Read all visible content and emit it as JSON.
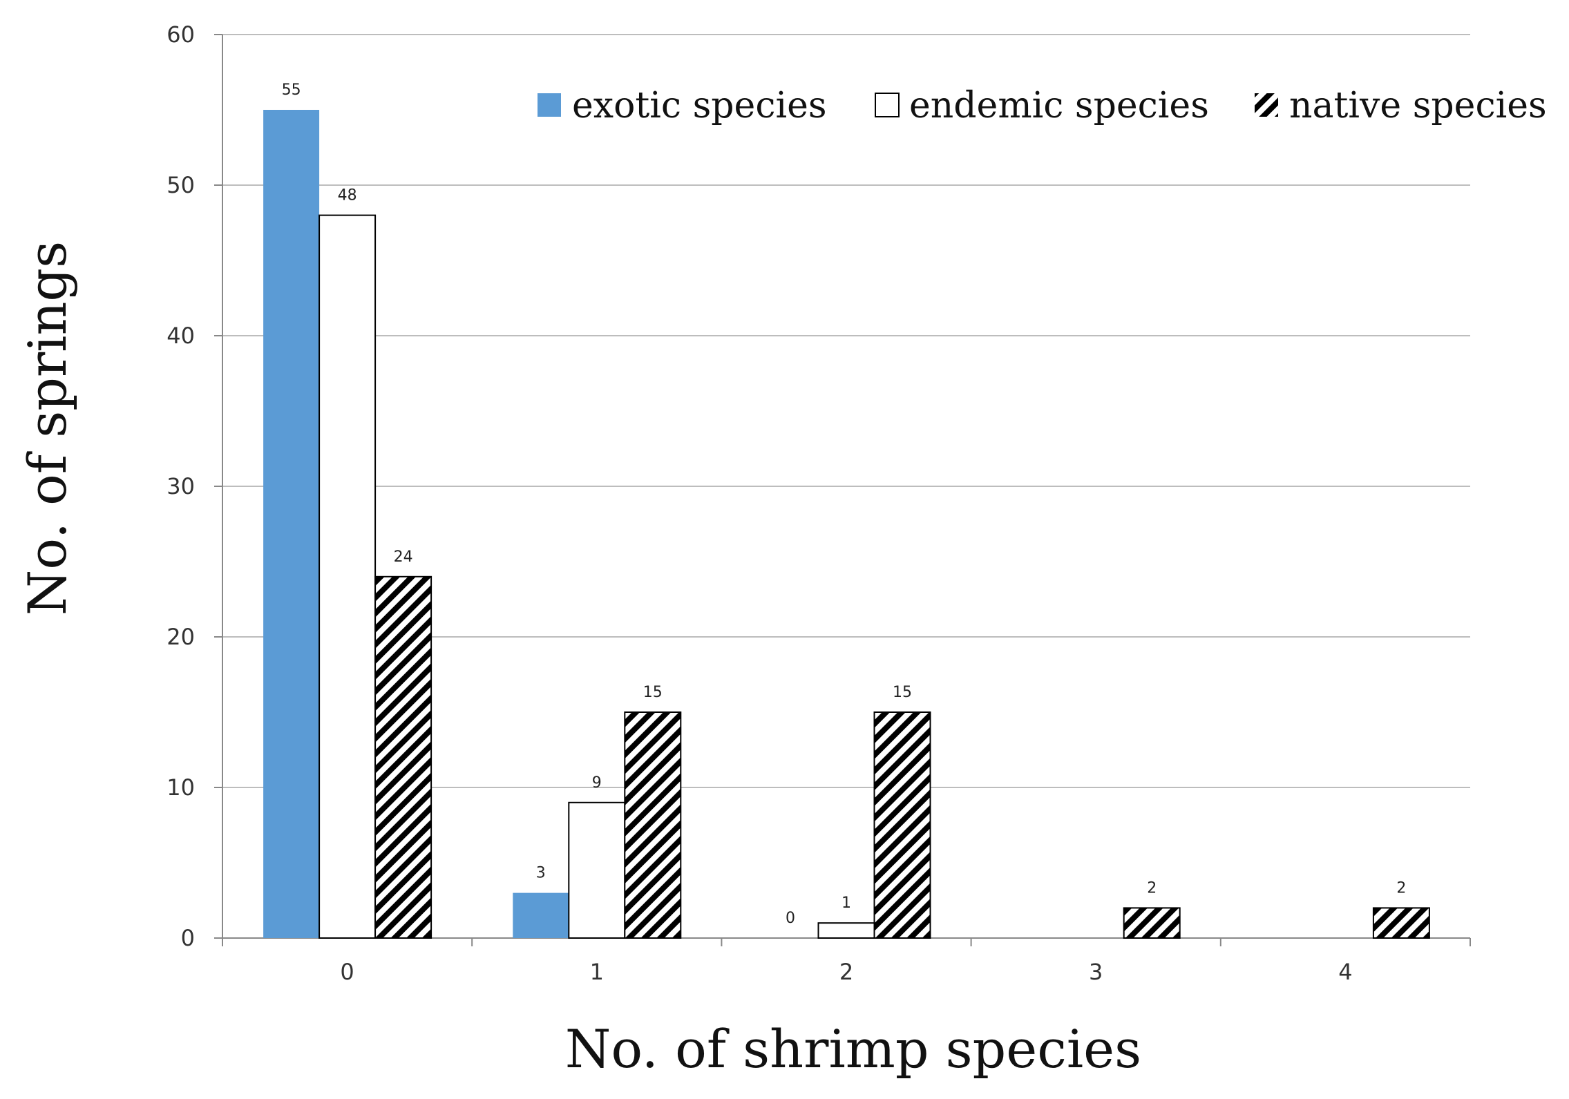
{
  "chart_data": {
    "type": "bar",
    "title": "",
    "xlabel": "No. of shrimp species",
    "ylabel": "No. of springs",
    "categories": [
      "0",
      "1",
      "2",
      "3",
      "4"
    ],
    "ylim": [
      0,
      60
    ],
    "yticks": [
      "0",
      "10",
      "20",
      "30",
      "40",
      "50",
      "60"
    ],
    "grid": true,
    "legend_position": "top-right",
    "series": [
      {
        "name": "exotic species",
        "values": [
          55,
          3,
          0,
          null,
          null
        ],
        "labels": [
          "55",
          "3",
          "0",
          "",
          ""
        ],
        "fill": "#5b9bd5",
        "pattern": "solid"
      },
      {
        "name": "endemic species",
        "values": [
          48,
          9,
          1,
          null,
          null
        ],
        "labels": [
          "48",
          "9",
          "1",
          "",
          ""
        ],
        "fill": "#ffffff",
        "pattern": "outline"
      },
      {
        "name": "native species",
        "values": [
          24,
          15,
          15,
          2,
          2
        ],
        "labels": [
          "24",
          "15",
          "15",
          "2",
          "2"
        ],
        "fill": "#000000",
        "pattern": "hatch"
      }
    ]
  }
}
